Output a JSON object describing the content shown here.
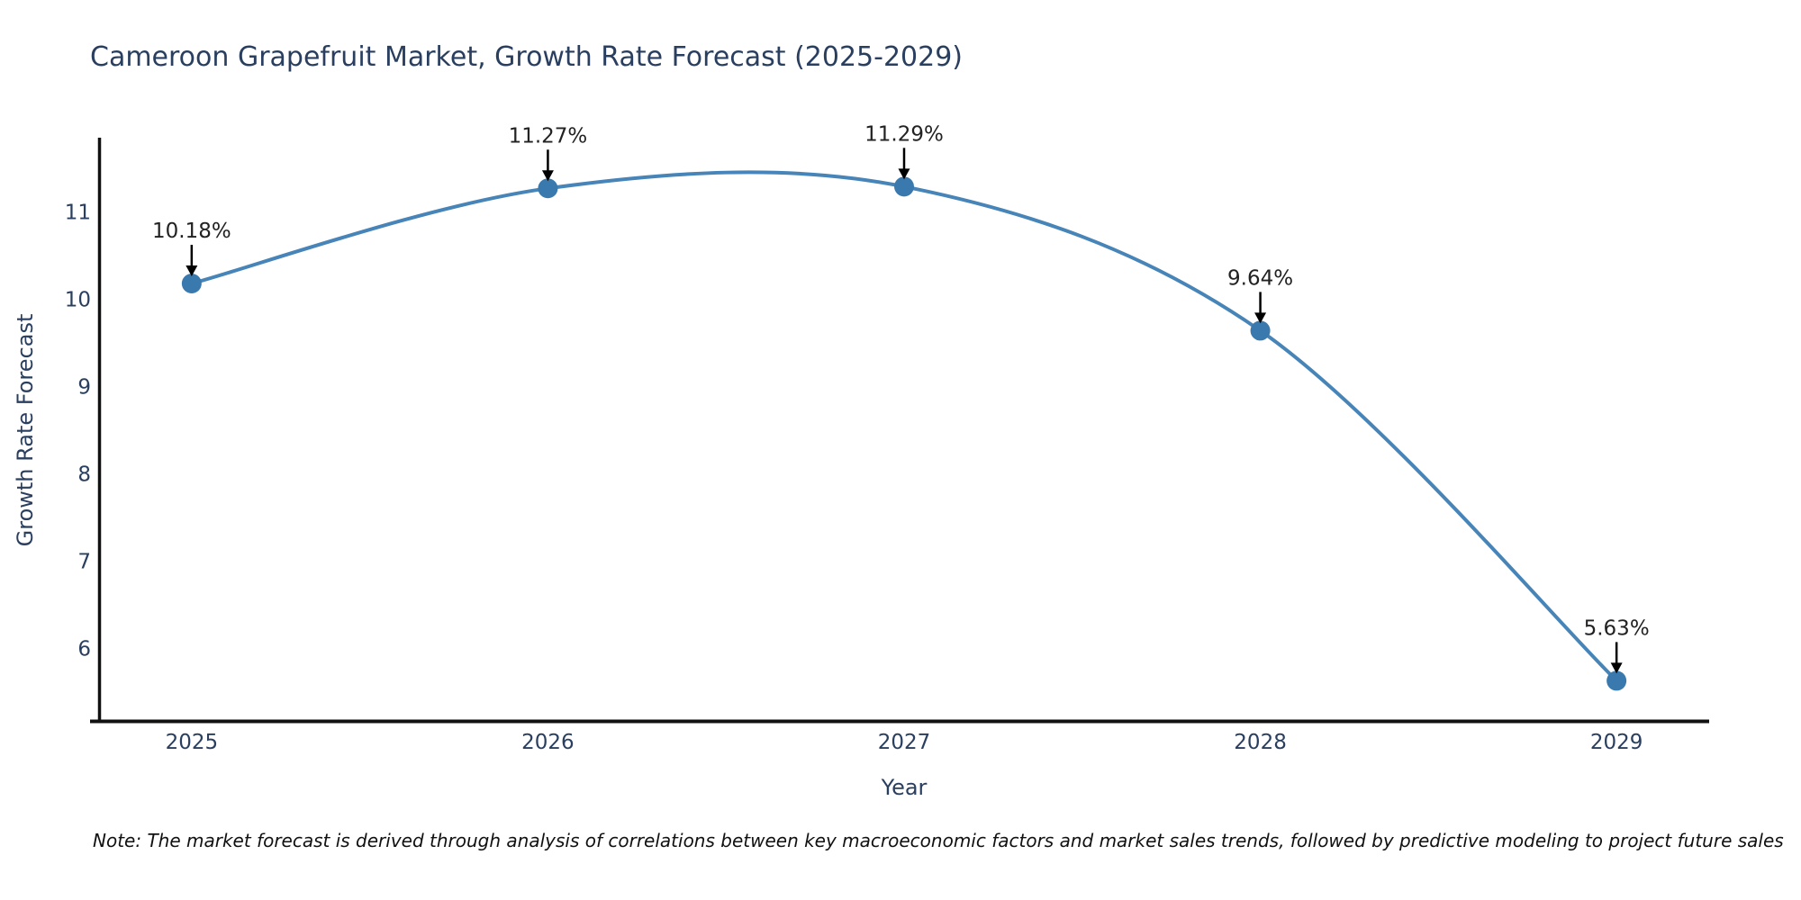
{
  "title": "Cameroon Grapefruit Market, Growth Rate Forecast (2025-2029)",
  "note": "Note: The market forecast is derived through analysis of correlations between key macroeconomic factors and market sales trends, followed by predictive modeling to project future sales",
  "colors": {
    "line": "#4784b8",
    "marker": "#3a79ae",
    "axis": "#111111",
    "arrow": "#000000",
    "title_text": "#2a3f5f",
    "tick_text": "#2a3f5f",
    "annotation_text": "#222222",
    "note_text": "#111111",
    "background": "#ffffff"
  },
  "chart_data": {
    "type": "line",
    "x": [
      2025,
      2026,
      2027,
      2028,
      2029
    ],
    "values": [
      10.18,
      11.27,
      11.29,
      9.64,
      5.63
    ],
    "point_labels": [
      "10.18%",
      "11.27%",
      "11.29%",
      "9.64%",
      "5.63%"
    ],
    "title": "Cameroon Grapefruit Market, Growth Rate Forecast (2025-2029)",
    "xlabel": "Year",
    "ylabel": "Growth Rate Forecast",
    "xticks": [
      "2025",
      "2026",
      "2027",
      "2028",
      "2029"
    ],
    "yticks": [
      6,
      7,
      8,
      9,
      10,
      11
    ],
    "xlim": [
      2024.74,
      2029.26
    ],
    "ylim": [
      5.15,
      11.85
    ],
    "line_shape": "spline",
    "grid": false,
    "legend": "none",
    "marker_size": 11,
    "line_width": 4
  }
}
